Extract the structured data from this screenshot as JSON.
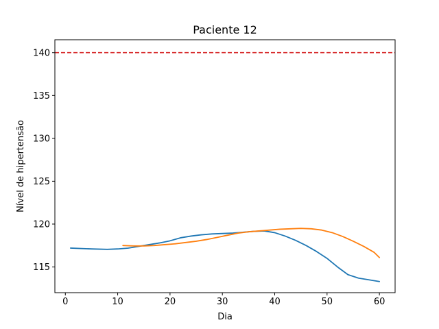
{
  "chart_data": {
    "type": "line",
    "title": "Paciente 12",
    "xlabel": "Dia",
    "ylabel": "Nível de hipertensão",
    "xlim": [
      -2,
      63
    ],
    "ylim": [
      112,
      141.5
    ],
    "xticks": [
      0,
      10,
      20,
      30,
      40,
      50,
      60
    ],
    "yticks": [
      115,
      120,
      125,
      130,
      135,
      140
    ],
    "grid": false,
    "reference_line": {
      "y": 140,
      "color": "#d62728",
      "style": "dashed"
    },
    "series": [
      {
        "color": "#1f77b4",
        "x": [
          1,
          5,
          8,
          10,
          12,
          14,
          16,
          18,
          20,
          22,
          24,
          26,
          28,
          30,
          32,
          34,
          36,
          38,
          40,
          42,
          44,
          46,
          48,
          50,
          52,
          54,
          56,
          58,
          60
        ],
        "y": [
          117.2,
          117.1,
          117.05,
          117.1,
          117.2,
          117.4,
          117.6,
          117.8,
          118.05,
          118.4,
          118.6,
          118.75,
          118.85,
          118.9,
          118.95,
          119.05,
          119.15,
          119.2,
          119.0,
          118.6,
          118.1,
          117.5,
          116.8,
          116.0,
          115.0,
          114.1,
          113.7,
          113.5,
          113.3
        ]
      },
      {
        "color": "#ff7f0e",
        "x": [
          11,
          13,
          15,
          17,
          19,
          21,
          23,
          25,
          27,
          29,
          31,
          33,
          35,
          37,
          39,
          41,
          43,
          45,
          47,
          49,
          51,
          53,
          55,
          57,
          59,
          60
        ],
        "y": [
          117.5,
          117.45,
          117.45,
          117.5,
          117.6,
          117.7,
          117.85,
          118.0,
          118.2,
          118.45,
          118.7,
          118.95,
          119.1,
          119.2,
          119.3,
          119.4,
          119.45,
          119.5,
          119.45,
          119.3,
          119.0,
          118.55,
          118.0,
          117.4,
          116.7,
          116.1
        ]
      }
    ]
  }
}
